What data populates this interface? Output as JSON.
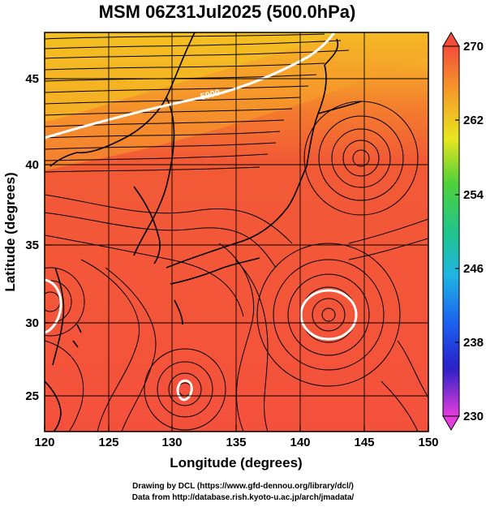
{
  "title": "MSM 06Z31Jul2025 (500.0hPa)",
  "axes": {
    "xlabel": "Longitude (degrees)",
    "ylabel": "Latitude  (degrees)",
    "xticks": [
      "120",
      "125",
      "130",
      "135",
      "140",
      "145",
      "150"
    ],
    "yticks": [
      "25",
      "30",
      "35",
      "40",
      "45"
    ]
  },
  "colorbar": {
    "labels": [
      "270",
      "262",
      "254",
      "246",
      "238",
      "230"
    ]
  },
  "contour_label": "5900",
  "credits": {
    "line1": "Drawing by DCL (https://www.gfd-dennou.org/library/dcl/)",
    "line2": "Data from http://database.rish.kyoto-u.ac.jp/arch/jmadata/"
  },
  "chart_data": {
    "type": "heatmap",
    "variable": "temperature with streamlines",
    "xlim": [
      120,
      150
    ],
    "ylim": [
      22.5,
      47.5
    ],
    "color_range": [
      230,
      270
    ],
    "grid": true
  },
  "colors": {
    "warm_bg": "#f4513c",
    "north_orange": "#f59a28",
    "north_yellow": "#f4c51f"
  }
}
